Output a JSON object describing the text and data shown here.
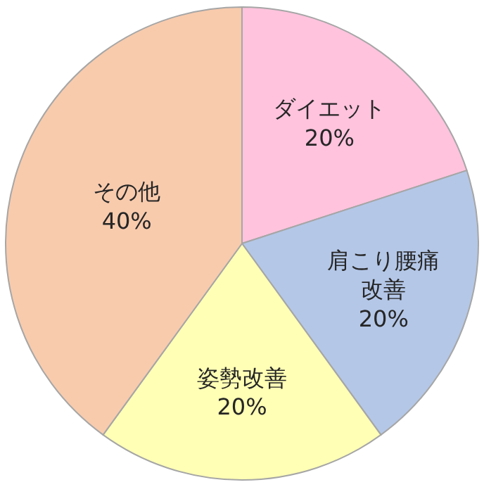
{
  "chart_data": {
    "type": "pie",
    "categories": [
      "ダイエット",
      "肩こり腰痛改善",
      "姿勢改善",
      "その他"
    ],
    "values": [
      20,
      20,
      20,
      40
    ],
    "value_labels": [
      "20%",
      "20%",
      "20%",
      "40%"
    ],
    "colors": [
      "#ffc3dd",
      "#b4c7e7",
      "#ffffb5",
      "#f8cbad"
    ],
    "legend": false
  }
}
